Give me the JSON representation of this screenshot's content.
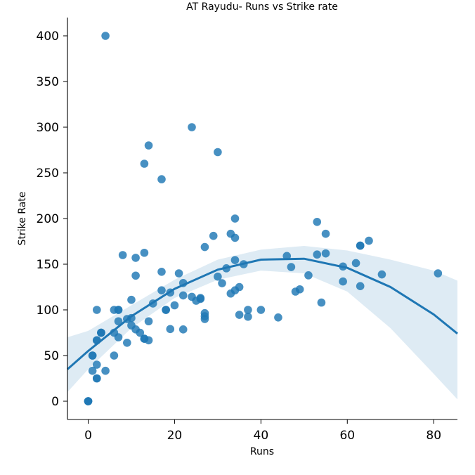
{
  "chart_data": {
    "type": "scatter",
    "title": "AT Rayudu- Runs vs Strike rate",
    "xlabel": "Runs",
    "ylabel": "Strike Rate",
    "xlim": [
      -4.8,
      85.5
    ],
    "ylim": [
      -20,
      420
    ],
    "xticks": [
      0,
      20,
      40,
      60,
      80
    ],
    "yticks": [
      0,
      50,
      100,
      150,
      200,
      250,
      300,
      350,
      400
    ],
    "grid": false,
    "legend": "none",
    "colors": {
      "points": "#1f77b4",
      "fit_line": "#1f77b4",
      "confidence_band": "#1f77b4"
    },
    "series": [
      {
        "points": [
          [
            0,
            0
          ],
          [
            0,
            0
          ],
          [
            0,
            0
          ],
          [
            1,
            50
          ],
          [
            1,
            50
          ],
          [
            1,
            33.3
          ],
          [
            2,
            100
          ],
          [
            2,
            66.7
          ],
          [
            2,
            66.7
          ],
          [
            2,
            40
          ],
          [
            2,
            25
          ],
          [
            2,
            25
          ],
          [
            3,
            75
          ],
          [
            3,
            75
          ],
          [
            3,
            75
          ],
          [
            4,
            400
          ],
          [
            4,
            33.3
          ],
          [
            6,
            100
          ],
          [
            6,
            75
          ],
          [
            6,
            50
          ],
          [
            7,
            100
          ],
          [
            7,
            87.5
          ],
          [
            7,
            70
          ],
          [
            7,
            100
          ],
          [
            8,
            160
          ],
          [
            9,
            90
          ],
          [
            9,
            64
          ],
          [
            10,
            111
          ],
          [
            10,
            91
          ],
          [
            10,
            83
          ],
          [
            11,
            157
          ],
          [
            11,
            137.5
          ],
          [
            11,
            78.6
          ],
          [
            12,
            75
          ],
          [
            13,
            260
          ],
          [
            13,
            162.5
          ],
          [
            13,
            68.4
          ],
          [
            13,
            68.4
          ],
          [
            14,
            280
          ],
          [
            14,
            87.5
          ],
          [
            14,
            66.7
          ],
          [
            15,
            107
          ],
          [
            17,
            243
          ],
          [
            17,
            141.7
          ],
          [
            17,
            121.4
          ],
          [
            18,
            100
          ],
          [
            18,
            100
          ],
          [
            19,
            119
          ],
          [
            19,
            79
          ],
          [
            20,
            105
          ],
          [
            21,
            140
          ],
          [
            22,
            129.4
          ],
          [
            22,
            115.8
          ],
          [
            22,
            78.6
          ],
          [
            24,
            300
          ],
          [
            24,
            114.3
          ],
          [
            25,
            110
          ],
          [
            26,
            113
          ],
          [
            26,
            112
          ],
          [
            27,
            168.8
          ],
          [
            27,
            96.4
          ],
          [
            27,
            93
          ],
          [
            27,
            90
          ],
          [
            29,
            181
          ],
          [
            30,
            272.7
          ],
          [
            30,
            136.4
          ],
          [
            31,
            129.2
          ],
          [
            32,
            145.5
          ],
          [
            33,
            183.3
          ],
          [
            33,
            117.9
          ],
          [
            34,
            200
          ],
          [
            34,
            178.9
          ],
          [
            34,
            154.5
          ],
          [
            34,
            121.4
          ],
          [
            35,
            125
          ],
          [
            35,
            94.6
          ],
          [
            36,
            150
          ],
          [
            37,
            100
          ],
          [
            37,
            92.5
          ],
          [
            40,
            100
          ],
          [
            44,
            91.7
          ],
          [
            46,
            159
          ],
          [
            47,
            146.9
          ],
          [
            48,
            120
          ],
          [
            49,
            122.5
          ],
          [
            51,
            137.8
          ],
          [
            53,
            196.3
          ],
          [
            53,
            160.6
          ],
          [
            54,
            108
          ],
          [
            55,
            183.3
          ],
          [
            55,
            161.8
          ],
          [
            59,
            147.5
          ],
          [
            59,
            131.1
          ],
          [
            62,
            151.2
          ],
          [
            63,
            170.3
          ],
          [
            63,
            170.3
          ],
          [
            63,
            126
          ],
          [
            65,
            175.7
          ],
          [
            68,
            138.8
          ],
          [
            81,
            140
          ]
        ]
      }
    ],
    "regression": {
      "order": 2,
      "x": [
        -4.8,
        0,
        10,
        20,
        30,
        40,
        50,
        60,
        70,
        80,
        85.5
      ],
      "y": [
        35,
        55,
        93,
        123,
        144,
        155,
        156,
        146,
        125,
        95,
        74
      ],
      "ci_lower": [
        10,
        35,
        80,
        113,
        133,
        143,
        140,
        120,
        80,
        30,
        2
      ],
      "ci_upper": [
        70,
        77,
        105,
        133,
        155,
        166,
        170,
        165,
        155,
        143,
        132
      ]
    }
  }
}
